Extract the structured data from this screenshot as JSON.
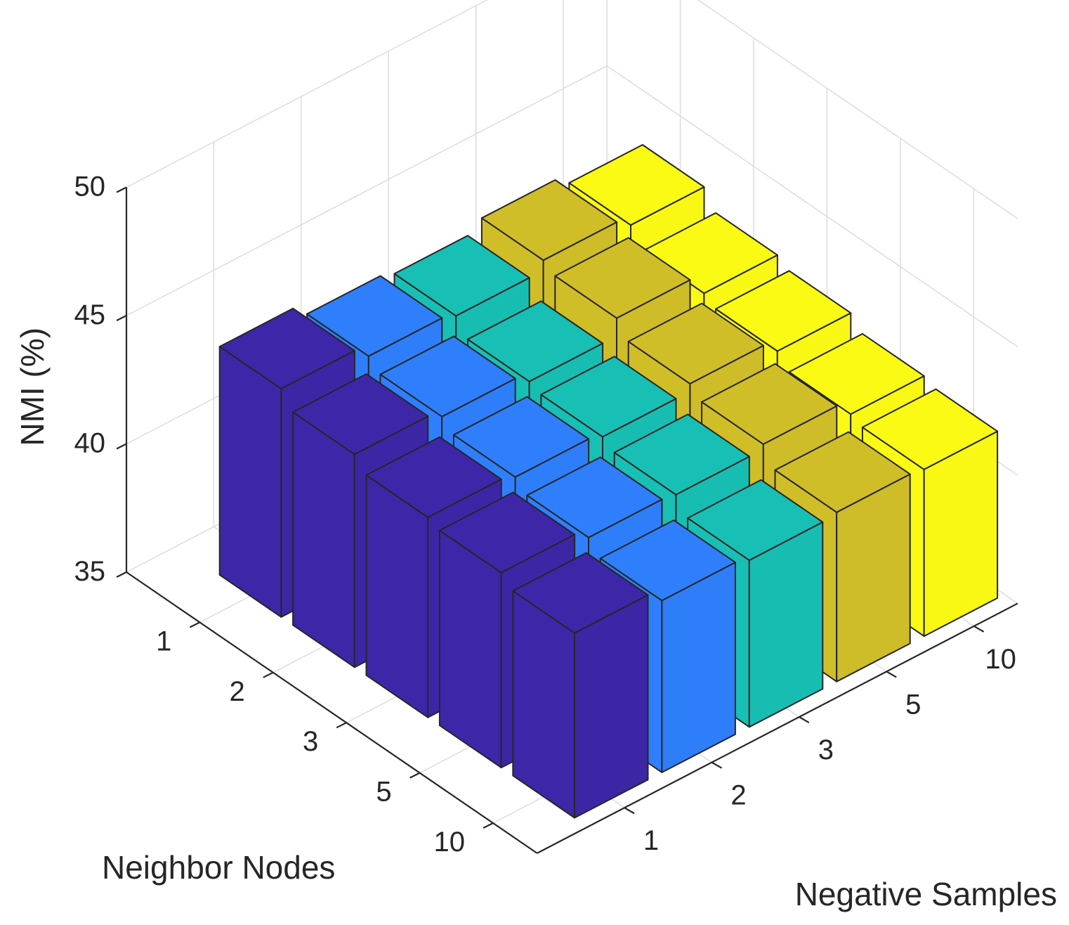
{
  "chart_data": {
    "type": "bar3d",
    "title": "",
    "zlabel": "NMI (%)",
    "xlabel": "Negative Samples",
    "ylabel": "Neighbor Nodes",
    "negative_samples": [
      "1",
      "2",
      "3",
      "5",
      "10"
    ],
    "neighbor_nodes": [
      "1",
      "2",
      "3",
      "5",
      "10"
    ],
    "zlim": [
      35,
      50
    ],
    "zticks": [
      "35",
      "40",
      "45",
      "50"
    ],
    "grid": true,
    "series": [
      {
        "negative_samples": "1",
        "color": "#3e26a8",
        "values": [
          43.9,
          43.3,
          42.8,
          42.6,
          42.2
        ]
      },
      {
        "negative_samples": "2",
        "color": "#2f7ffc",
        "values": [
          43.4,
          43.0,
          42.6,
          42.2,
          41.7
        ]
      },
      {
        "negative_samples": "3",
        "color": "#18bfb4",
        "values": [
          43.2,
          42.6,
          42.4,
          42.1,
          41.5
        ]
      },
      {
        "negative_samples": "5",
        "color": "#d0be28",
        "values": [
          43.6,
          43.3,
          42.7,
          42.3,
          41.6
        ]
      },
      {
        "negative_samples": "10",
        "color": "#fafa14",
        "values": [
          43.2,
          42.5,
          42.2,
          41.7,
          41.5
        ]
      }
    ]
  }
}
